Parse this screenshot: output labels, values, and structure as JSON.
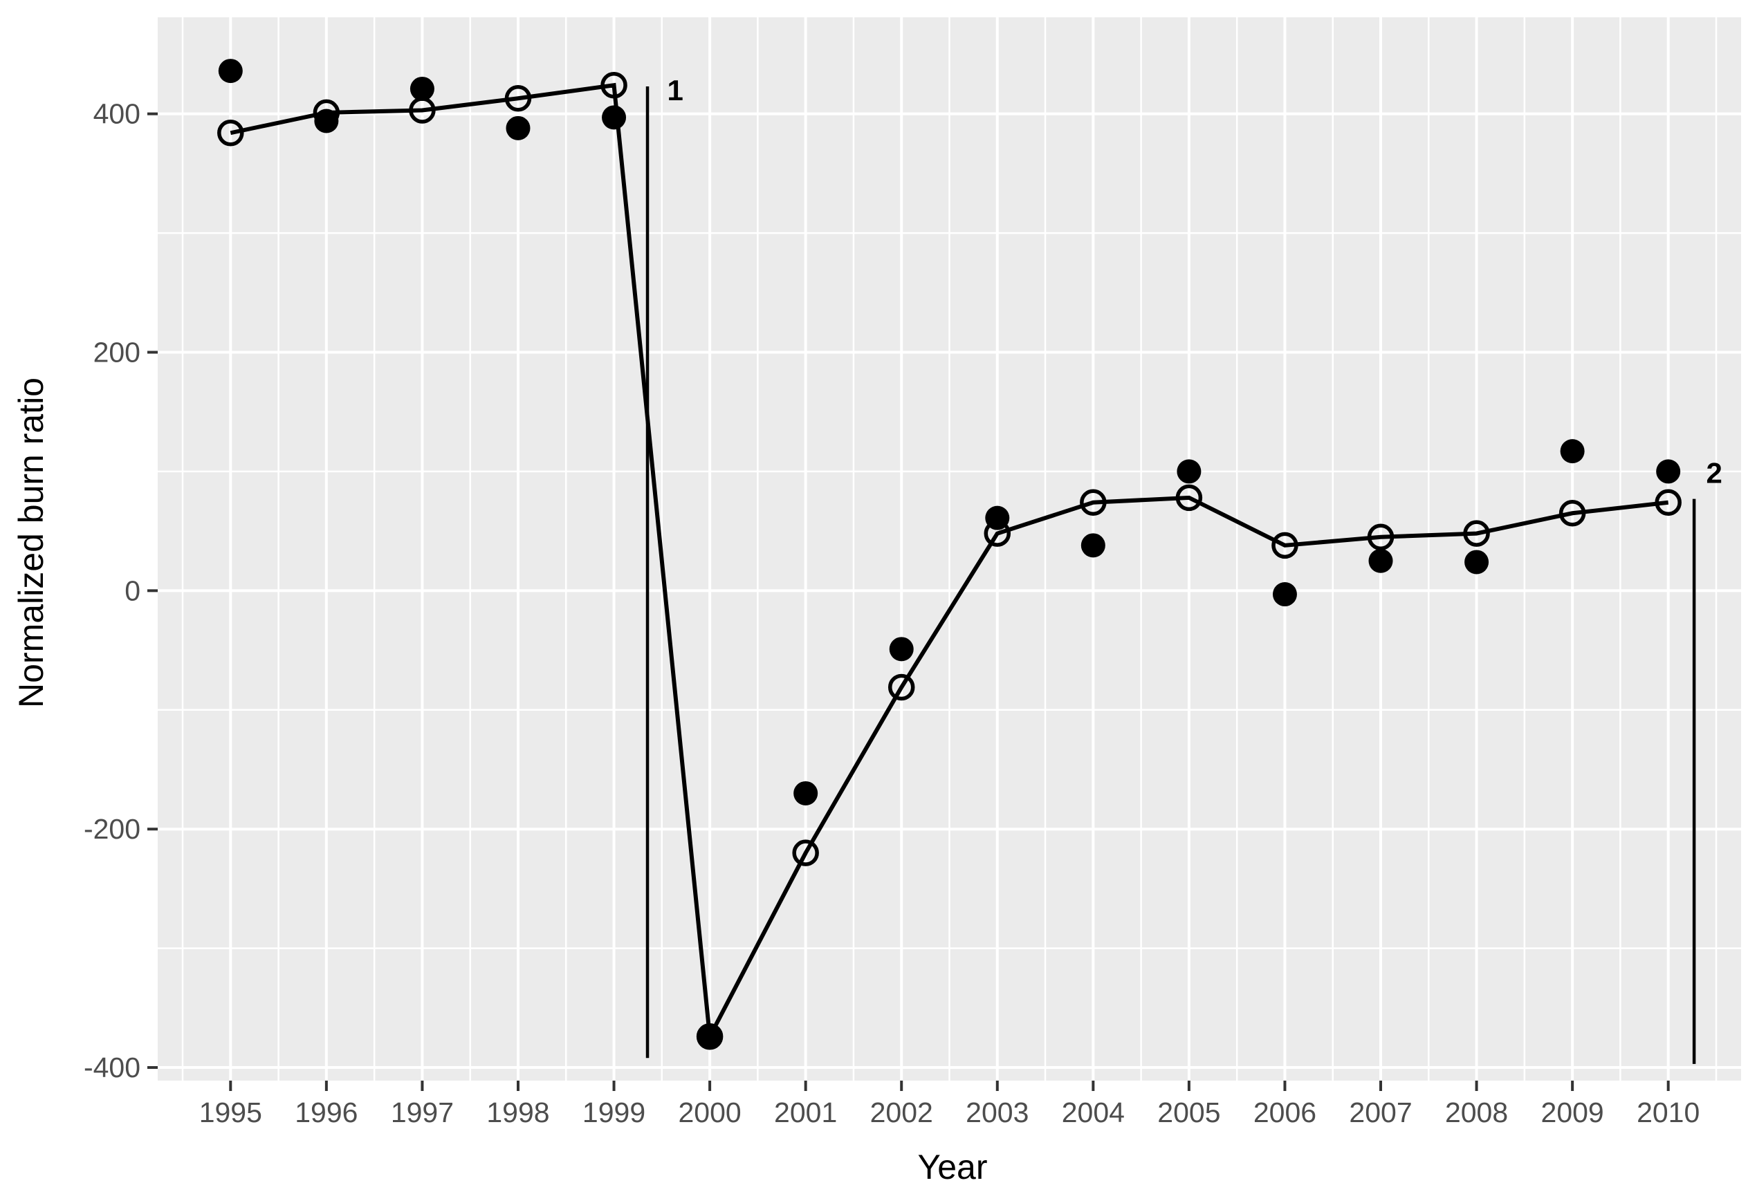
{
  "chart_data": {
    "type": "line",
    "subtype": "scatter-with-fitted-line",
    "title": "",
    "xlabel": "Year",
    "ylabel": "Normalized burn ratio",
    "xlim": [
      1994.24,
      2010.76
    ],
    "ylim": [
      -411,
      481
    ],
    "grid": true,
    "legend_position": "none",
    "x_major_ticks": [
      1995,
      1996,
      1997,
      1998,
      1999,
      2000,
      2001,
      2002,
      2003,
      2004,
      2005,
      2006,
      2007,
      2008,
      2009,
      2010
    ],
    "x_minor_ticks": [
      1994.5,
      1995.5,
      1996.5,
      1997.5,
      1998.5,
      1999.5,
      2000.5,
      2001.5,
      2002.5,
      2003.5,
      2004.5,
      2005.5,
      2006.5,
      2007.5,
      2008.5,
      2009.5,
      2010.5
    ],
    "y_major_ticks": [
      400,
      200,
      0,
      -200,
      -400
    ],
    "y_minor_ticks": [
      300,
      100,
      -100,
      -300
    ],
    "x": [
      1995,
      1996,
      1997,
      1998,
      1999,
      2000,
      2001,
      2002,
      2003,
      2004,
      2005,
      2006,
      2007,
      2008,
      2009,
      2010
    ],
    "series": [
      {
        "name": "observed-points",
        "marker": "filled-circle",
        "line": false,
        "values": [
          436,
          394,
          421,
          388,
          397,
          -374,
          -170,
          -49,
          61,
          38,
          100,
          -3,
          25,
          24,
          117,
          100
        ]
      },
      {
        "name": "fitted-trend",
        "marker": "open-circle",
        "line": true,
        "values": [
          384,
          401,
          403,
          413,
          424,
          -374,
          -220,
          -81,
          48,
          74,
          78,
          38,
          45,
          48,
          65,
          74
        ]
      }
    ],
    "vline_markers": [
      {
        "label": "1",
        "x": 1999.35,
        "y_top": 423,
        "y_bottom": -392,
        "label_x": 1999.64,
        "label_y": 420
      },
      {
        "label": "2",
        "x": 2010.27,
        "y_top": 77,
        "y_bottom": -397,
        "label_x": 2010.48,
        "label_y": 99
      }
    ],
    "colors": {
      "panel_bg": "#ebebeb",
      "grid": "#ffffff",
      "data": "#000000",
      "tick_text": "#4d4d4d",
      "tick_mark": "#333333",
      "axis_title": "#000000"
    }
  }
}
